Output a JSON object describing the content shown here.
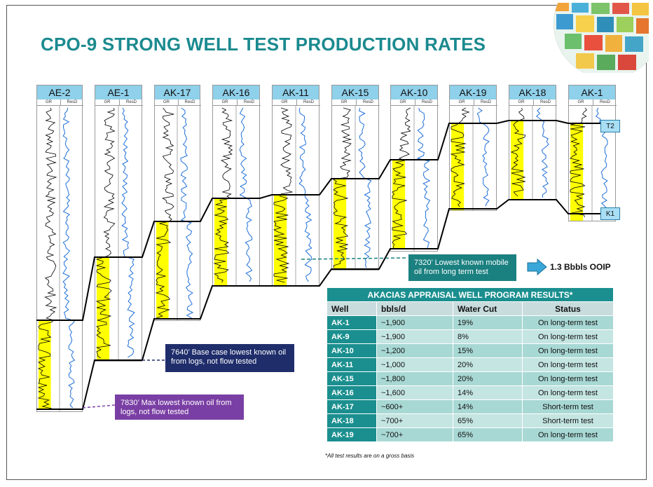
{
  "title": "CPO-9 STRONG WELL TEST PRODUCTION RATES",
  "colors": {
    "title": "#1b8a8f",
    "well_header": "#8fd0ea",
    "sand": "#ffff00",
    "gr_curve": "#000000",
    "res_curve": "#1e6fd9",
    "callout_navy": "#1f2d6b",
    "callout_purple": "#7a3fa4",
    "callout_teal": "#1b8080",
    "table_accent": "#1b8f8f"
  },
  "wells": [
    {
      "name": "AE-2"
    },
    {
      "name": "AE-1"
    },
    {
      "name": "AK-17"
    },
    {
      "name": "AK-16"
    },
    {
      "name": "AK-11"
    },
    {
      "name": "AK-15"
    },
    {
      "name": "AK-10"
    },
    {
      "name": "AK-19"
    },
    {
      "name": "AK-18"
    },
    {
      "name": "AK-1"
    }
  ],
  "track_labels": {
    "gr": "GR",
    "res": "ResD"
  },
  "markers": {
    "top": "T2",
    "bottom": "K1"
  },
  "callouts": {
    "base_case": "7640’ Base case  lowest known oil from logs, not flow tested",
    "max_lowest": "7830’ Max lowest known oil from logs, not flow tested",
    "mobile_oil": "7320’ Lowest known mobile oil from long term test"
  },
  "ooip": "1.3 Bbbls OOIP",
  "results_table": {
    "title": "AKACIAS APPRAISAL WELL PROGRAM RESULTS*",
    "headers": [
      "Well",
      "bbls/d",
      "Water Cut",
      "Status"
    ],
    "rows": [
      {
        "well": "AK-1",
        "rate": "~1,900",
        "water_cut": "19%",
        "status": "On long-term test"
      },
      {
        "well": "AK-9",
        "rate": "~1,900",
        "water_cut": "8%",
        "status": "On long-term test"
      },
      {
        "well": "AK-10",
        "rate": "~1,200",
        "water_cut": "15%",
        "status": "On long-term test"
      },
      {
        "well": "AK-11",
        "rate": "~1,000",
        "water_cut": "20%",
        "status": "On long-term test"
      },
      {
        "well": "AK-15",
        "rate": "~1,800",
        "water_cut": "20%",
        "status": "On long-term test"
      },
      {
        "well": "AK-16",
        "rate": "~1,600",
        "water_cut": "14%",
        "status": "On long-term test"
      },
      {
        "well": "AK-17",
        "rate": "~600+",
        "water_cut": "14%",
        "status": "Short-term test"
      },
      {
        "well": "AK-18",
        "rate": "~700+",
        "water_cut": "65%",
        "status": "Short-term test"
      },
      {
        "well": "AK-19",
        "rate": "~700+",
        "water_cut": "65%",
        "status": "On long-term test"
      }
    ],
    "footnote": "*All test results are on a gross basis"
  }
}
